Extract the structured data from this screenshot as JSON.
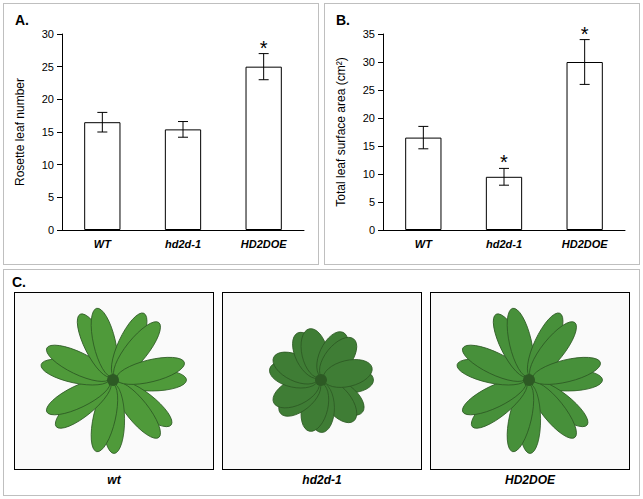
{
  "chart_data": [
    {
      "type": "bar",
      "title": "A.",
      "categories": [
        "WT",
        "hd2d-1",
        "HD2DOE"
      ],
      "values": [
        16.5,
        15.4,
        25
      ],
      "errors": [
        1.5,
        1.2,
        2
      ],
      "color": "#ffffff",
      "y_label": "Rosette leaf number",
      "ylim": [
        0,
        30
      ],
      "yticks": [
        0,
        5,
        10,
        15,
        20,
        25,
        30
      ],
      "grid": false,
      "annotations": [
        {
          "category": "HD2DOE",
          "text": "*"
        }
      ]
    },
    {
      "type": "bar",
      "title": "B.",
      "categories": [
        "WT",
        "hd2d-1",
        "HD2DOE"
      ],
      "values": [
        16.5,
        9.5,
        30
      ],
      "errors": [
        2,
        1.5,
        4
      ],
      "color": "#ffffff",
      "y_label": "Total leaf surface area (cm²)",
      "ylim": [
        0,
        35
      ],
      "yticks": [
        0,
        5,
        10,
        15,
        20,
        25,
        30,
        35
      ],
      "grid": false,
      "annotations": [
        {
          "category": "hd2d-1",
          "text": "*"
        },
        {
          "category": "HD2DOE",
          "text": "*"
        }
      ]
    }
  ],
  "photos": {
    "title": "C.",
    "captions": [
      "wt",
      "hd2d-1",
      "HD2DOE"
    ]
  }
}
